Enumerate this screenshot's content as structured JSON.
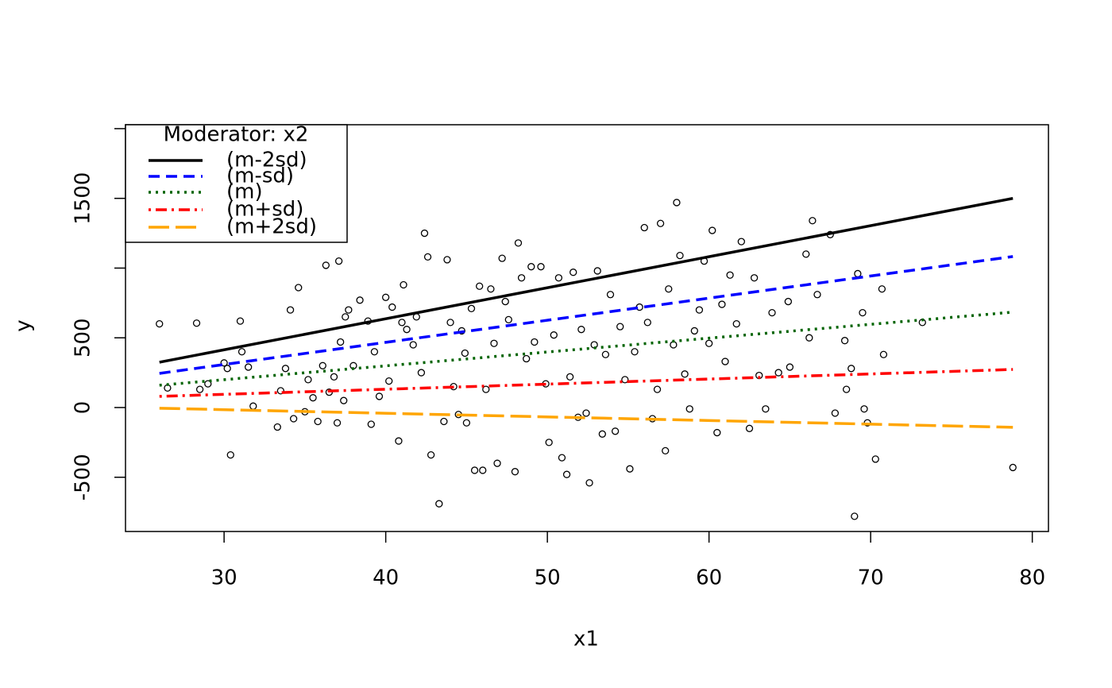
{
  "chart_data": {
    "type": "scatter",
    "xlabel": "x1",
    "ylabel": "y",
    "xlim": [
      23.9,
      81.0
    ],
    "ylim": [
      -889,
      2028
    ],
    "xticks": [
      30,
      40,
      50,
      60,
      70,
      80
    ],
    "yticks": [
      -500,
      0,
      500,
      {
        "value": 1000,
        "label": null
      },
      1500,
      {
        "value": 2000,
        "label": null
      }
    ],
    "points": {
      "color": "#000000",
      "x": [
        26,
        28.3,
        31,
        26.5,
        28.5,
        29,
        30,
        30.2,
        30.4,
        31.1,
        31.5,
        31.8,
        33.3,
        33.5,
        33.8,
        34.1,
        34.3,
        34.6,
        35,
        35.2,
        35.5,
        35.8,
        36.1,
        36.3,
        36.5,
        36.8,
        37,
        37.1,
        37.2,
        37.4,
        37.5,
        37.7,
        38,
        38.4,
        38.9,
        39.1,
        39.3,
        39.6,
        40,
        40.2,
        40.4,
        40.8,
        41,
        41.1,
        41.3,
        41.7,
        41.9,
        42.2,
        42.4,
        42.6,
        42.8,
        43.3,
        43.6,
        43.8,
        44,
        44.2,
        44.5,
        44.7,
        44.9,
        45,
        45.3,
        45.5,
        45.8,
        46,
        46.2,
        46.5,
        46.7,
        46.9,
        47.2,
        47.4,
        47.6,
        48,
        48.2,
        48.4,
        48.7,
        49,
        49.2,
        49.6,
        49.9,
        50.1,
        50.4,
        50.7,
        50.9,
        51.2,
        51.4,
        51.6,
        51.9,
        52.1,
        52.4,
        52.6,
        52.9,
        53.1,
        53.4,
        53.6,
        53.9,
        54.2,
        54.5,
        54.8,
        55.1,
        55.4,
        55.7,
        56,
        56.2,
        56.5,
        56.8,
        57,
        57.3,
        57.5,
        57.8,
        58,
        58.2,
        58.5,
        58.8,
        59.1,
        59.4,
        59.7,
        60,
        60.2,
        60.5,
        60.8,
        61,
        61.3,
        61.7,
        62,
        62.5,
        62.8,
        63.1,
        63.5,
        63.9,
        64.3,
        64.9,
        65,
        66,
        66.2,
        66.4,
        66.7,
        67.5,
        67.8,
        68.4,
        68.5,
        68.8,
        69,
        69.2,
        69.5,
        69.6,
        69.8,
        70.3,
        70.7,
        70.8,
        73.2,
        78.8
      ],
      "y": [
        600,
        605,
        620,
        140,
        130,
        170,
        320,
        280,
        -340,
        400,
        290,
        10,
        -140,
        120,
        280,
        700,
        -80,
        860,
        -30,
        200,
        70,
        -100,
        300,
        1020,
        110,
        220,
        -110,
        1050,
        470,
        50,
        650,
        700,
        300,
        770,
        620,
        -120,
        400,
        80,
        790,
        190,
        720,
        -240,
        610,
        880,
        560,
        450,
        650,
        250,
        1250,
        1080,
        -340,
        -690,
        -100,
        1060,
        610,
        150,
        -50,
        550,
        390,
        -110,
        710,
        -450,
        870,
        -450,
        130,
        850,
        460,
        -400,
        1070,
        760,
        630,
        -460,
        1180,
        930,
        350,
        1010,
        470,
        1010,
        170,
        -250,
        520,
        930,
        -360,
        -480,
        220,
        970,
        -70,
        560,
        -40,
        -540,
        450,
        980,
        -190,
        380,
        810,
        -170,
        580,
        200,
        -440,
        400,
        720,
        1290,
        610,
        -80,
        130,
        1320,
        -310,
        850,
        450,
        1470,
        1090,
        240,
        -10,
        550,
        700,
        1050,
        460,
        1270,
        -180,
        740,
        330,
        950,
        600,
        1190,
        -150,
        930,
        230,
        -10,
        680,
        250,
        760,
        290,
        1100,
        500,
        1340,
        810,
        1240,
        -40,
        480,
        130,
        280,
        -780,
        960,
        680,
        -10,
        -110,
        -370,
        850,
        380,
        610,
        -430
      ]
    },
    "legend": {
      "title": "Moderator: x2",
      "position": "top-left"
    },
    "series": [
      {
        "name": "(m-2sd)",
        "color": "#000000",
        "style": "solid",
        "x": [
          26,
          78.8
        ],
        "values": [
          325,
          1500
        ]
      },
      {
        "name": "(m-sd)",
        "color": "#0000ff",
        "style": "dashed",
        "x": [
          26,
          78.8
        ],
        "values": [
          245,
          1083
        ]
      },
      {
        "name": "(m)",
        "color": "#006400",
        "style": "dotted",
        "x": [
          26,
          78.8
        ],
        "values": [
          160,
          684
        ]
      },
      {
        "name": "(m+sd)",
        "color": "#ff0000",
        "style": "dotdash",
        "x": [
          26,
          78.8
        ],
        "values": [
          80,
          273
        ]
      },
      {
        "name": "(m+2sd)",
        "color": "#ffa500",
        "style": "longdash",
        "x": [
          26,
          78.8
        ],
        "values": [
          -5,
          -142
        ]
      }
    ]
  }
}
